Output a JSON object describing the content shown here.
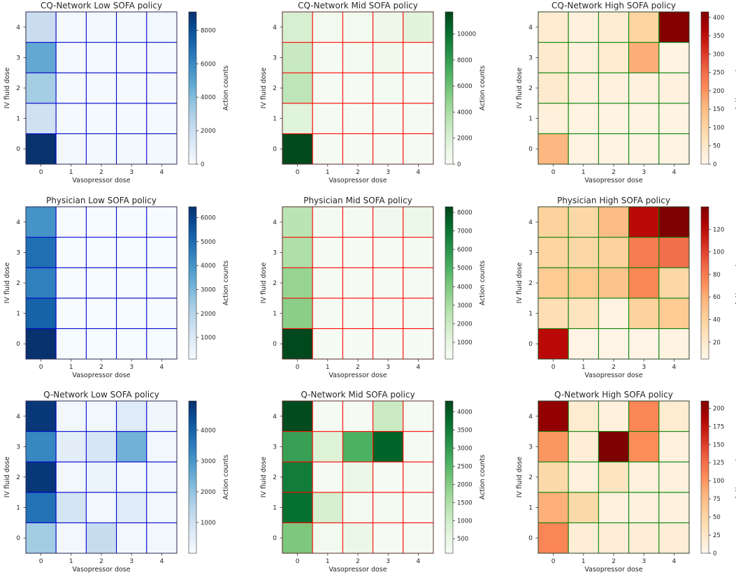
{
  "axis_labels": {
    "x": "Vasopressor dose",
    "y": "IV fluid dose",
    "colorbar": "Action counts"
  },
  "chart_data": [
    {
      "type": "heatmap",
      "title": "CQ-Network Low SOFA policy",
      "colormap": "Blues",
      "grid_color": "#0000cc",
      "x_ticks": [
        "0",
        "1",
        "2",
        "3",
        "4"
      ],
      "y_ticks": [
        "0",
        "1",
        "2",
        "3",
        "4"
      ],
      "clim": [
        0,
        9100
      ],
      "colorbar_ticks": [
        0,
        2000,
        4000,
        6000,
        8000
      ],
      "values": [
        [
          9000,
          200,
          200,
          200,
          200
        ],
        [
          1800,
          150,
          150,
          150,
          150
        ],
        [
          3200,
          150,
          150,
          150,
          150
        ],
        [
          4800,
          150,
          150,
          150,
          150
        ],
        [
          2100,
          150,
          200,
          200,
          300
        ]
      ]
    },
    {
      "type": "heatmap",
      "title": "CQ-Network Mid SOFA policy",
      "colormap": "Greens",
      "grid_color": "#ff0000",
      "x_ticks": [
        "0",
        "1",
        "2",
        "3",
        "4"
      ],
      "y_ticks": [
        "0",
        "1",
        "2",
        "3",
        "4"
      ],
      "clim": [
        0,
        11700
      ],
      "colorbar_ticks": [
        0,
        2000,
        4000,
        6000,
        8000,
        10000
      ],
      "values": [
        [
          11500,
          200,
          200,
          200,
          200
        ],
        [
          1700,
          200,
          200,
          200,
          200
        ],
        [
          3300,
          200,
          200,
          400,
          200
        ],
        [
          2900,
          200,
          400,
          600,
          200
        ],
        [
          2200,
          400,
          500,
          800,
          1600
        ]
      ]
    },
    {
      "type": "heatmap",
      "title": "CQ-Network High SOFA policy",
      "colormap": "OrangeRed",
      "grid_color": "#008000",
      "x_ticks": [
        "0",
        "1",
        "2",
        "3",
        "4"
      ],
      "y_ticks": [
        "0",
        "1",
        "2",
        "3",
        "4"
      ],
      "clim": [
        0,
        415
      ],
      "colorbar_ticks": [
        0,
        50,
        100,
        150,
        200,
        250,
        300,
        350,
        400
      ],
      "values": [
        [
          160,
          15,
          15,
          15,
          15
        ],
        [
          25,
          15,
          15,
          15,
          15
        ],
        [
          45,
          20,
          20,
          20,
          20
        ],
        [
          45,
          20,
          40,
          170,
          15
        ],
        [
          40,
          20,
          35,
          100,
          410
        ]
      ]
    },
    {
      "type": "heatmap",
      "title": "Physician Low SOFA policy",
      "colormap": "Blues",
      "grid_color": "#0000cc",
      "x_ticks": [
        "0",
        "1",
        "2",
        "3",
        "4"
      ],
      "y_ticks": [
        "0",
        "1",
        "2",
        "3",
        "4"
      ],
      "clim": [
        100,
        6450
      ],
      "colorbar_ticks": [
        1000,
        2000,
        3000,
        4000,
        5000,
        6000
      ],
      "values": [
        [
          6400,
          120,
          120,
          120,
          120
        ],
        [
          5200,
          120,
          120,
          120,
          120
        ],
        [
          4500,
          120,
          120,
          120,
          120
        ],
        [
          4900,
          120,
          120,
          120,
          120
        ],
        [
          4000,
          120,
          120,
          120,
          120
        ]
      ]
    },
    {
      "type": "heatmap",
      "title": "Physician Mid SOFA policy",
      "colormap": "Greens",
      "grid_color": "#ff0000",
      "x_ticks": [
        "0",
        "1",
        "2",
        "3",
        "4"
      ],
      "y_ticks": [
        "0",
        "1",
        "2",
        "3",
        "4"
      ],
      "clim": [
        100,
        8300
      ],
      "colorbar_ticks": [
        1000,
        2000,
        3000,
        4000,
        5000,
        6000,
        7000,
        8000
      ],
      "values": [
        [
          8200,
          150,
          150,
          150,
          150
        ],
        [
          3700,
          200,
          200,
          200,
          200
        ],
        [
          3400,
          200,
          200,
          200,
          200
        ],
        [
          2800,
          200,
          200,
          200,
          300
        ],
        [
          2500,
          300,
          300,
          500,
          700
        ]
      ]
    },
    {
      "type": "heatmap",
      "title": "Physician High SOFA policy",
      "colormap": "OrangeRed",
      "grid_color": "#008000",
      "x_ticks": [
        "0",
        "1",
        "2",
        "3",
        "4"
      ],
      "y_ticks": [
        "0",
        "1",
        "2",
        "3",
        "4"
      ],
      "clim": [
        5,
        140
      ],
      "colorbar_ticks": [
        20,
        40,
        60,
        80,
        100,
        120
      ],
      "values": [
        [
          120,
          8,
          8,
          8,
          10
        ],
        [
          30,
          25,
          10,
          40,
          45
        ],
        [
          45,
          45,
          50,
          75,
          35
        ],
        [
          38,
          35,
          40,
          80,
          85
        ],
        [
          40,
          35,
          55,
          120,
          140
        ]
      ]
    },
    {
      "type": "heatmap",
      "title": "Q-Network Low SOFA policy",
      "colormap": "Blues",
      "grid_color": "#0000cc",
      "x_ticks": [
        "0",
        "1",
        "2",
        "3",
        "4"
      ],
      "y_ticks": [
        "0",
        "1",
        "2",
        "3",
        "4"
      ],
      "clim": [
        0,
        4950
      ],
      "colorbar_ticks": [
        1000,
        2000,
        3000,
        4000
      ],
      "values": [
        [
          1800,
          150,
          1200,
          150,
          150
        ],
        [
          3700,
          900,
          150,
          600,
          150
        ],
        [
          4800,
          150,
          300,
          150,
          150
        ],
        [
          3300,
          500,
          800,
          2400,
          150
        ],
        [
          4800,
          150,
          150,
          600,
          200
        ]
      ]
    },
    {
      "type": "heatmap",
      "title": "Q-Network Mid SOFA policy",
      "colormap": "Greens",
      "grid_color": "#ff0000",
      "x_ticks": [
        "0",
        "1",
        "2",
        "3",
        "4"
      ],
      "y_ticks": [
        "0",
        "1",
        "2",
        "3",
        "4"
      ],
      "clim": [
        100,
        4300
      ],
      "colorbar_ticks": [
        500,
        1000,
        1500,
        2000,
        2500,
        3000,
        3500,
        4000
      ],
      "values": [
        [
          2100,
          250,
          450,
          150,
          150
        ],
        [
          3700,
          900,
          250,
          250,
          150
        ],
        [
          3500,
          150,
          450,
          150,
          150
        ],
        [
          2900,
          750,
          2600,
          3900,
          150
        ],
        [
          4200,
          150,
          150,
          1100,
          200
        ]
      ]
    },
    {
      "type": "heatmap",
      "title": "Q-Network High SOFA policy",
      "colormap": "OrangeRed",
      "grid_color": "#008000",
      "x_ticks": [
        "0",
        "1",
        "2",
        "3",
        "4"
      ],
      "y_ticks": [
        "0",
        "1",
        "2",
        "3",
        "4"
      ],
      "clim": [
        0,
        210
      ],
      "colorbar_ticks": [
        0,
        25,
        50,
        75,
        100,
        125,
        150,
        175,
        200
      ],
      "values": [
        [
          110,
          15,
          15,
          15,
          15
        ],
        [
          85,
          45,
          10,
          10,
          10
        ],
        [
          45,
          10,
          30,
          10,
          10
        ],
        [
          100,
          15,
          210,
          105,
          10
        ],
        [
          200,
          20,
          10,
          110,
          20
        ]
      ]
    }
  ]
}
